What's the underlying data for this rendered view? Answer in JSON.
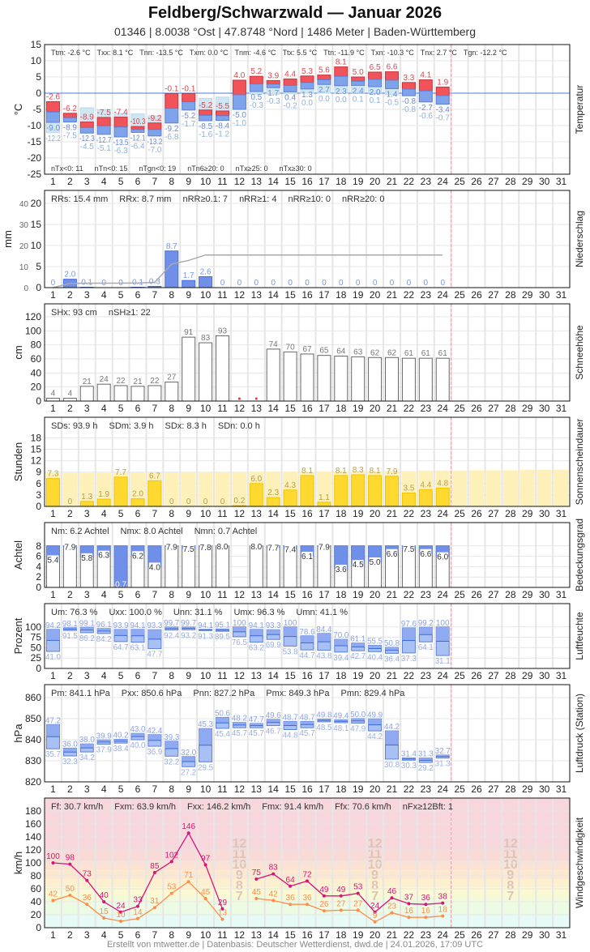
{
  "header": {
    "title": "Feldberg/Schwarzwald  —  Januar 2026",
    "subtitle": "01346  |  8.0038 °Ost  |  47.8748 °Nord  |  1486 Meter  |  Baden-Württemberg"
  },
  "footer": "Erstellt von mtwetter.de | Datenbasis: Deutscher Wetterdienst, dwd.de | 24.01.2026, 17:09 UTC",
  "days": [
    1,
    2,
    3,
    4,
    5,
    6,
    7,
    8,
    9,
    10,
    11,
    12,
    13,
    14,
    15,
    16,
    17,
    18,
    19,
    20,
    21,
    22,
    23,
    24,
    25,
    26,
    27,
    28,
    29,
    30,
    31
  ],
  "current_day_marker": 24,
  "colors": {
    "tmax": "#f0545a",
    "tmin": "#7fa3ea",
    "ground": "#cfe6f3",
    "precip": "#6f8fe8",
    "sun": "#ffd830",
    "sun_possible": "#fdf0b8",
    "gust": "#d6157a",
    "mean_wind": "#ff8c4a",
    "grid": "#e6e6e6",
    "marker": "#e8a0a8"
  },
  "chart_data": [
    {
      "id": "temp",
      "type": "bar",
      "title": "Temperatur",
      "ylabel": "°C",
      "ylim": [
        -25,
        15
      ],
      "yticks": [
        15,
        10,
        5,
        0,
        -5,
        -10,
        -15,
        -20,
        -25
      ],
      "stats": [
        "Ttm: -2.6 °C",
        "Txx: 8.1 °C",
        "Tnn: -13.5 °C",
        "Txm: 0.0 °C",
        "Tnm: -4.6 °C",
        "Ttx: 5.5 °C",
        "Ttn: -11.9 °C",
        "Txn: -10.3 °C",
        "Tnx: 2.7 °C",
        "Tgn: -12.2 °C"
      ],
      "stats_bottom": [
        "nTx<0: 11",
        "nTn<0: 15",
        "nTgn<0: 19",
        "nTn6≥20: 0",
        "nTx≥25: 0",
        "nTx≥30: 0"
      ],
      "tmax": [
        -2.6,
        -6.2,
        -8.9,
        -7.5,
        -7.4,
        -10.3,
        -9.2,
        -0.1,
        -0.1,
        -5.2,
        -5.5,
        4.0,
        5.2,
        3.9,
        4.4,
        5.3,
        5.6,
        8.1,
        5.0,
        6.5,
        6.6,
        3.3,
        4.1,
        1.9
      ],
      "tmin": [
        -9.0,
        -8.9,
        -12.3,
        -12.7,
        -13.5,
        -12.1,
        -13.2,
        -9.2,
        -5.2,
        -8.5,
        -8.4,
        -5.0,
        0.5,
        1.7,
        0.4,
        1.3,
        2.7,
        2.3,
        2.4,
        2.0,
        1.4,
        -0.8,
        -2.7,
        -3.4
      ],
      "tground": [
        -12.2,
        -7.5,
        -4.5,
        -5.1,
        -6.3,
        -6.4,
        -7.0,
        -6.8,
        -1.7,
        -1.6,
        -1.2,
        -1.0,
        -0.3,
        -0.3,
        -0.2,
        0.0,
        0.0,
        0.0,
        0.1,
        0.1,
        -0.5,
        -0.8,
        -0.6,
        -0.7
      ]
    },
    {
      "id": "precip",
      "type": "bar",
      "title": "Niederschlag",
      "ylabel": "mm",
      "ylim": [
        0,
        20
      ],
      "yticks": [
        20,
        15,
        10,
        5,
        0
      ],
      "yticks_cumulative": [
        40,
        30,
        20,
        10,
        0
      ],
      "stats": [
        "RRs: 15.4 mm",
        "RRx: 8.7 mm",
        "nRR≥0.1: 7",
        "nRR≥1: 4",
        "nRR≥10: 0",
        "nRR≥20: 0"
      ],
      "values": [
        0,
        2.0,
        0.1,
        0,
        0,
        0.1,
        0.3,
        8.7,
        1.7,
        2.6,
        0,
        0,
        0,
        0,
        0,
        0,
        0,
        0,
        0,
        0,
        0,
        0,
        0,
        0
      ]
    },
    {
      "id": "snow",
      "type": "bar",
      "title": "Schneehöhe",
      "ylabel": "cm",
      "ylim": [
        0,
        120
      ],
      "yticks": [
        120,
        100,
        80,
        60,
        40,
        20,
        0
      ],
      "stats": [
        "SHx: 93 cm",
        "nSH≥1: 22"
      ],
      "values": [
        4,
        4,
        21,
        24,
        22,
        21,
        22,
        27,
        91,
        83,
        93,
        null,
        null,
        74,
        70,
        67,
        65,
        64,
        63,
        62,
        62,
        61,
        61,
        61
      ]
    },
    {
      "id": "sun",
      "type": "bar",
      "title": "Sonnenscheindauer",
      "ylabel": "Stunden",
      "ylim": [
        0,
        20
      ],
      "yticks": [
        18,
        15,
        12,
        9,
        6,
        3,
        0
      ],
      "stats": [
        "SDs: 93.9 h",
        "SDm: 3.9 h",
        "SDx: 8.3 h",
        "SDn: 0.0 h"
      ],
      "values": [
        7.3,
        0,
        1.3,
        1.9,
        7.7,
        2.0,
        6.7,
        0,
        0,
        0,
        0,
        0.2,
        6.0,
        2.3,
        4.3,
        8.1,
        1.1,
        8.1,
        8.3,
        8.1,
        7.9,
        3.5,
        4.4,
        4.8
      ],
      "possible": [
        8.8,
        8.8,
        8.8,
        8.8,
        8.9,
        8.9,
        8.9,
        8.9,
        9.0,
        9.0,
        9.0,
        9.0,
        9.1,
        9.1,
        9.1,
        9.1,
        9.2,
        9.2,
        9.2,
        9.2,
        9.3,
        9.3,
        9.4,
        9.4,
        9.4,
        9.5,
        9.5,
        9.5,
        9.6,
        9.6,
        9.6
      ]
    },
    {
      "id": "cloud",
      "type": "bar",
      "title": "Bedeckungsgrad",
      "ylabel": "Achtel",
      "ylim": [
        0,
        10
      ],
      "yticks": [
        8,
        6,
        4,
        2,
        0
      ],
      "stats": [
        "Nm: 6.2 Achtel",
        "Nmx: 8.0 Achtel",
        "Nmn: 0.7 Achtel"
      ],
      "values": [
        5.4,
        7.9,
        5.8,
        6.3,
        0.7,
        6.2,
        4.0,
        7.9,
        7.5,
        7.8,
        8.0,
        null,
        8.0,
        7.7,
        7.4,
        6.1,
        7.9,
        3.6,
        4.5,
        5.0,
        6.6,
        7.5,
        6.6,
        6.0
      ]
    },
    {
      "id": "hum",
      "type": "bar",
      "title": "Luftfeuchte",
      "ylabel": "Prozent",
      "ylim": [
        0,
        125
      ],
      "yticks": [
        100,
        75,
        50,
        25,
        0
      ],
      "stats": [
        "Um: 76.3 %",
        "Uxx: 100.0 %",
        "Unn: 31.1 %",
        "Umx: 96.3 %",
        "Umn: 41.1 %"
      ],
      "max": [
        94.2,
        98.1,
        99.1,
        96.1,
        93.9,
        94.1,
        93.3,
        99.7,
        99.7,
        94.1,
        95.1,
        100,
        94.1,
        93.3,
        100,
        78.6,
        84.4,
        70.0,
        61.1,
        55.5,
        50.8,
        97.6,
        99.2,
        100
      ],
      "min": [
        41.0,
        91.5,
        86.2,
        84.2,
        64.7,
        63.1,
        47.7,
        92.4,
        93.2,
        91.3,
        89.5,
        76.5,
        63.2,
        69.9,
        53.8,
        44.7,
        43.8,
        39.4,
        42.7,
        40.4,
        36.4,
        37.3,
        64.1,
        31.1
      ]
    },
    {
      "id": "pres",
      "type": "bar",
      "title": "Luftdruck (Station)",
      "ylabel": "hPa",
      "ylim": [
        820,
        860
      ],
      "yticks": [
        860,
        850,
        840,
        830,
        820
      ],
      "stats": [
        "Pm: 841.1 hPa",
        "Pxx: 850.6 hPa",
        "Pnn: 827.2 hPa",
        "Pmx: 849.3 hPa",
        "Pmn: 829.4 hPa"
      ],
      "max": [
        847.2,
        836.0,
        838.0,
        839.9,
        840.2,
        843.0,
        842.4,
        839.3,
        832.0,
        845.3,
        850.6,
        848.2,
        847.7,
        849.6,
        848.7,
        848.7,
        849.8,
        849.4,
        850.0,
        849.9,
        844.2,
        831.4,
        831.3,
        832.7
      ],
      "min": [
        835.7,
        832.3,
        834.2,
        837.9,
        838.4,
        840.0,
        836.9,
        832.2,
        827.2,
        829.5,
        845.4,
        845.7,
        845.7,
        846.7,
        844.8,
        845.7,
        848.5,
        848.1,
        847.9,
        844.2,
        830.8,
        830.3,
        829.2,
        831.3
      ]
    },
    {
      "id": "wind",
      "type": "line",
      "title": "Windgeschwindigkeit",
      "ylabel": "km/h",
      "ylim": [
        0,
        180
      ],
      "yticks": [
        180,
        160,
        140,
        120,
        100,
        80,
        60,
        40,
        20,
        0
      ],
      "stats": [
        "Ff: 30.7 km/h",
        "Fxm: 63.9 km/h",
        "Fxx: 146.2 km/h",
        "Fmx: 91.4 km/h",
        "Ffx: 70.6 km/h",
        "nFx≥12Bft: 1"
      ],
      "beaufort_labels": [
        "12",
        "11",
        "10",
        "9",
        "8",
        "7"
      ],
      "gust": [
        100,
        98,
        73,
        40,
        24,
        33,
        85,
        102,
        146,
        97,
        29,
        null,
        75,
        83,
        64,
        72,
        49,
        49,
        53,
        24,
        46,
        37,
        36,
        38
      ],
      "mean": [
        42,
        50,
        36,
        15,
        10,
        14,
        31,
        53,
        71,
        45,
        13,
        null,
        45,
        42,
        36,
        36,
        26,
        27,
        27,
        9,
        23,
        16,
        16,
        18
      ]
    }
  ]
}
